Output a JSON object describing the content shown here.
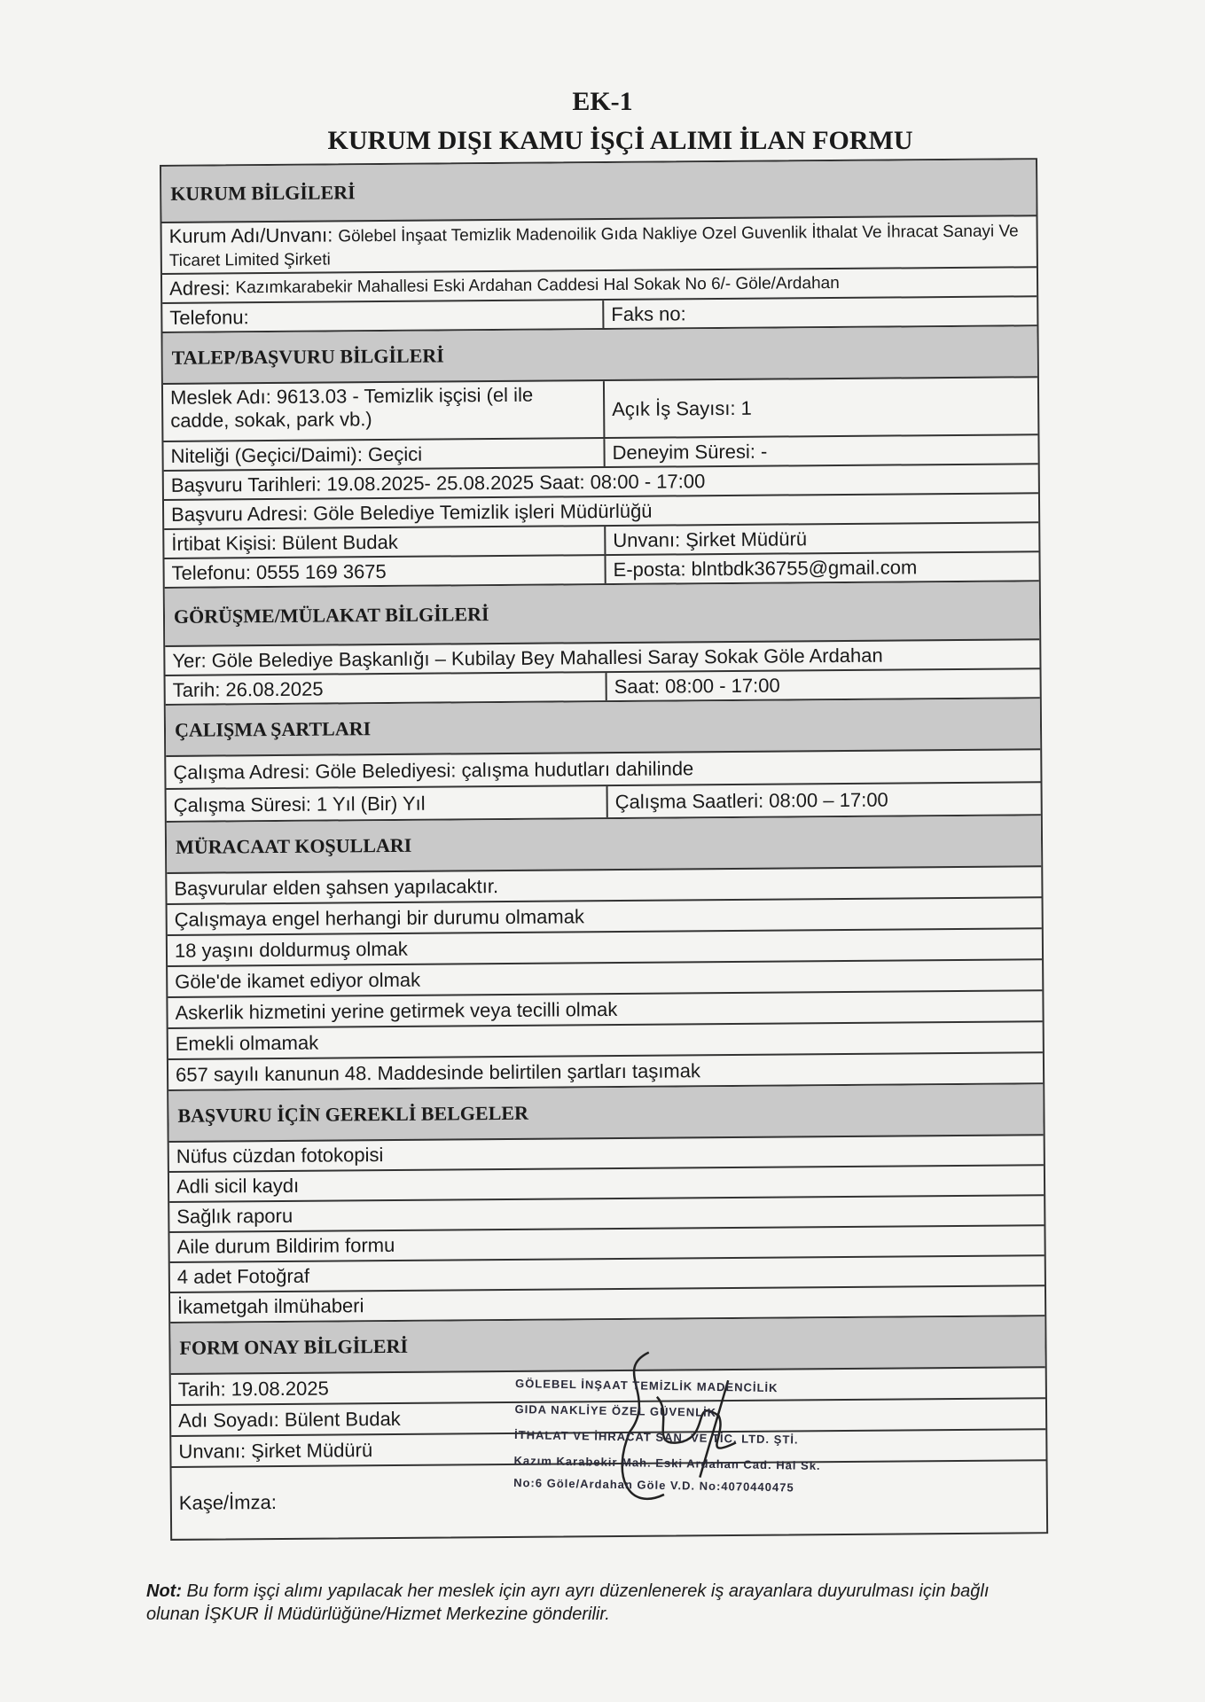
{
  "header": {
    "ek": "EK-1",
    "title": "KURUM DIŞI KAMU İŞÇİ ALIMI İLAN FORMU"
  },
  "kurum": {
    "title": "KURUM BİLGİLERİ",
    "adi_label": "Kurum Adı/Unvanı:",
    "adi": "Gölebel İnşaat Temizlik Madenoilik Gıda Nakliye Ozel Guvenlik İthalat Ve İhracat Sanayi Ve Ticaret Limited Şirketi",
    "adres_label": "Adresi:",
    "adres": "Kazımkarabekir Mahallesi Eski Ardahan Caddesi Hal Sokak No 6/- Göle/Ardahan",
    "telefon_label": "Telefonu:",
    "telefon": "",
    "faks_label": "Faks no:",
    "faks": ""
  },
  "talep": {
    "title": "TALEP/BAŞVURU BİLGİLERİ",
    "meslek_label": "Meslek Adı:",
    "meslek": "9613.03 - Temizlik işçisi (el ile cadde, sokak, park vb.)",
    "acik_label": "Açık İş Sayısı:",
    "acik": "1",
    "nitelik_label": "Niteliği (Geçici/Daimi):",
    "nitelik": "Geçici",
    "deneyim_label": "Deneyim Süresi:",
    "deneyim": "-",
    "tarih_label": "Başvuru Tarihleri:",
    "tarih": "19.08.2025- 25.08.2025 Saat: 08:00 - 17:00",
    "adres_label": "Başvuru Adresi:",
    "adres": "Göle Belediye Temizlik işleri Müdürlüğü",
    "irtibat_label": "İrtibat Kişisi:",
    "irtibat": "Bülent Budak",
    "unvan_label": "Unvanı:",
    "unvan": "Şirket Müdürü",
    "telefon_label": "Telefonu:",
    "telefon": "0555 169 3675",
    "eposta_label": "E-posta:",
    "eposta": "blntbdk36755@gmail.com"
  },
  "gorusme": {
    "title": "GÖRÜŞME/MÜLAKAT BİLGİLERİ",
    "yer_label": "Yer:",
    "yer": "Göle Belediye Başkanlığı – Kubilay Bey Mahallesi Saray Sokak Göle Ardahan",
    "tarih_label": "Tarih:",
    "tarih": "26.08.2025",
    "saat_label": "Saat:",
    "saat": "08:00 - 17:00"
  },
  "calisma": {
    "title": "ÇALIŞMA ŞARTLARI",
    "adres_label": "Çalışma Adresi:",
    "adres": "Göle Belediyesi: çalışma hudutları dahilinde",
    "sure_label": "Çalışma Süresi:",
    "sure": "1 Yıl (Bir) Yıl",
    "saat_label": "Çalışma Saatleri:",
    "saat": "08:00 – 17:00"
  },
  "muracaat": {
    "title": "MÜRACAAT KOŞULLARI",
    "items": [
      "Başvurular elden şahsen yapılacaktır.",
      "Çalışmaya engel herhangi bir durumu olmamak",
      "18 yaşını doldurmuş olmak",
      "Göle'de ikamet ediyor olmak",
      "Askerlik hizmetini yerine getirmek veya tecilli olmak",
      "Emekli olmamak",
      "657 sayılı kanunun 48. Maddesinde belirtilen şartları taşımak"
    ]
  },
  "belgeler": {
    "title": "BAŞVURU İÇİN GEREKLİ BELGELER",
    "items": [
      "Nüfus cüzdan fotokopisi",
      "Adli sicil kaydı",
      "Sağlık raporu",
      "Aile durum Bildirim formu",
      "4 adet Fotoğraf",
      "İkametgah ilmühaberi"
    ]
  },
  "onay": {
    "title": "FORM ONAY BİLGİLERİ",
    "tarih_label": "Tarih:",
    "tarih": "19.08.2025",
    "adi_label": "Adı Soyadı:",
    "adi": "Bülent Budak",
    "unvan_label": "Unvanı:",
    "unvan": "Şirket Müdürü",
    "kase_label": "Kaşe/İmza:",
    "stamp": [
      "GÖLEBEL İNŞAAT TEMİZLİK MADENCİLİK",
      "GIDA NAKLİYE ÖZEL GÜVENLİK",
      "İTHALAT VE İHRACAT SAN. VE TİC. LTD. ŞTİ.",
      "Kazım Karabekir Mah. Eski Ardahan Cad. Hal Sk.",
      "No:6 Göle/Ardahan Göle V.D. No:4070440475"
    ]
  },
  "note": {
    "label": "Not:",
    "text": "Bu form işçi alımı yapılacak her meslek için ayrı ayrı düzenlenerek iş arayanlara duyurulması için bağlı olunan İŞKUR İl Müdürlüğüne/Hizmet Merkezine gönderilir."
  }
}
